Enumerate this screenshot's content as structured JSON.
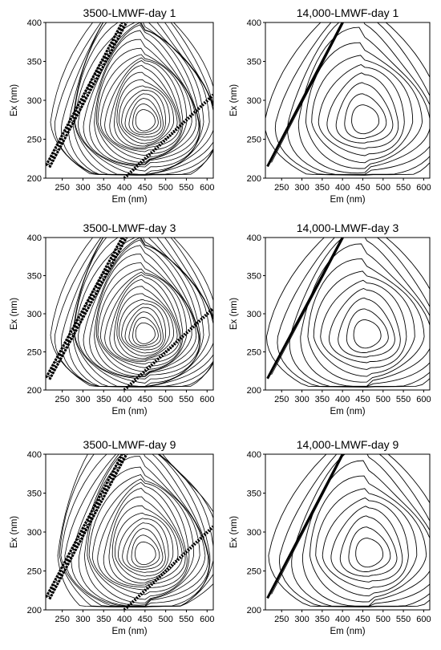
{
  "figure": {
    "panels": [
      {
        "title": "3500-LMWF-day 1",
        "xlabel": "Em (nm)",
        "ylabel": "Ex (nm)",
        "density": 1.0
      },
      {
        "title": "14,000-LMWF-day 1",
        "xlabel": "Em (nm)",
        "ylabel": "Ex (nm)",
        "density": 0.45
      },
      {
        "title": "3500-LMWF-day 3",
        "xlabel": "Em (nm)",
        "ylabel": "Ex (nm)",
        "density": 1.0
      },
      {
        "title": "14,000-LMWF-day 3",
        "xlabel": "Em (nm)",
        "ylabel": "Ex (nm)",
        "density": 0.45
      },
      {
        "title": "3500-LMWF-day 9",
        "xlabel": "Em (nm)",
        "ylabel": "Ex (nm)",
        "density": 0.8
      },
      {
        "title": "14,000-LMWF-day 9",
        "xlabel": "Em (nm)",
        "ylabel": "Ex (nm)",
        "density": 0.45
      }
    ]
  },
  "chart_data": [
    {
      "type": "heatmap",
      "title": "3500-LMWF-day 1",
      "xlabel": "Em (nm)",
      "ylabel": "Ex (nm)",
      "xlim": [
        210,
        615
      ],
      "ylim": [
        200,
        400
      ],
      "xticks": [
        250,
        300,
        350,
        400,
        450,
        500,
        550,
        600
      ],
      "yticks": [
        200,
        250,
        300,
        350,
        400
      ],
      "peak": {
        "em": 450,
        "ex": 272
      },
      "contour_levels": 24,
      "grid": false
    },
    {
      "type": "heatmap",
      "title": "14,000-LMWF-day 1",
      "xlabel": "Em (nm)",
      "ylabel": "Ex (nm)",
      "xlim": [
        210,
        615
      ],
      "ylim": [
        200,
        400
      ],
      "xticks": [
        250,
        300,
        350,
        400,
        450,
        500,
        550,
        600
      ],
      "yticks": [
        200,
        250,
        300,
        350,
        400
      ],
      "peak": {
        "em": 455,
        "ex": 272
      },
      "contour_levels": 11,
      "grid": false
    },
    {
      "type": "heatmap",
      "title": "3500-LMWF-day 3",
      "xlabel": "Em (nm)",
      "ylabel": "Ex (nm)",
      "xlim": [
        210,
        615
      ],
      "ylim": [
        200,
        400
      ],
      "xticks": [
        250,
        300,
        350,
        400,
        450,
        500,
        550,
        600
      ],
      "yticks": [
        200,
        250,
        300,
        350,
        400
      ],
      "peak": {
        "em": 450,
        "ex": 272
      },
      "contour_levels": 24,
      "grid": false
    },
    {
      "type": "heatmap",
      "title": "14,000-LMWF-day 3",
      "xlabel": "Em (nm)",
      "ylabel": "Ex (nm)",
      "xlim": [
        210,
        615
      ],
      "ylim": [
        200,
        400
      ],
      "xticks": [
        250,
        300,
        350,
        400,
        450,
        500,
        550,
        600
      ],
      "yticks": [
        200,
        250,
        300,
        350,
        400
      ],
      "peak": {
        "em": 460,
        "ex": 270
      },
      "contour_levels": 11,
      "grid": false
    },
    {
      "type": "heatmap",
      "title": "3500-LMWF-day 9",
      "xlabel": "Em (nm)",
      "ylabel": "Ex (nm)",
      "xlim": [
        210,
        615
      ],
      "ylim": [
        200,
        400
      ],
      "xticks": [
        250,
        300,
        350,
        400,
        450,
        500,
        550,
        600
      ],
      "yticks": [
        200,
        250,
        300,
        350,
        400
      ],
      "peak": {
        "em": 450,
        "ex": 270
      },
      "contour_levels": 20,
      "grid": false
    },
    {
      "type": "heatmap",
      "title": "14,000-LMWF-day 9",
      "xlabel": "Em (nm)",
      "ylabel": "Ex (nm)",
      "xlim": [
        210,
        615
      ],
      "ylim": [
        200,
        400
      ],
      "xticks": [
        250,
        300,
        350,
        400,
        450,
        500,
        550,
        600
      ],
      "yticks": [
        200,
        250,
        300,
        350,
        400
      ],
      "peak": {
        "em": 465,
        "ex": 270
      },
      "contour_levels": 11,
      "grid": false
    }
  ]
}
